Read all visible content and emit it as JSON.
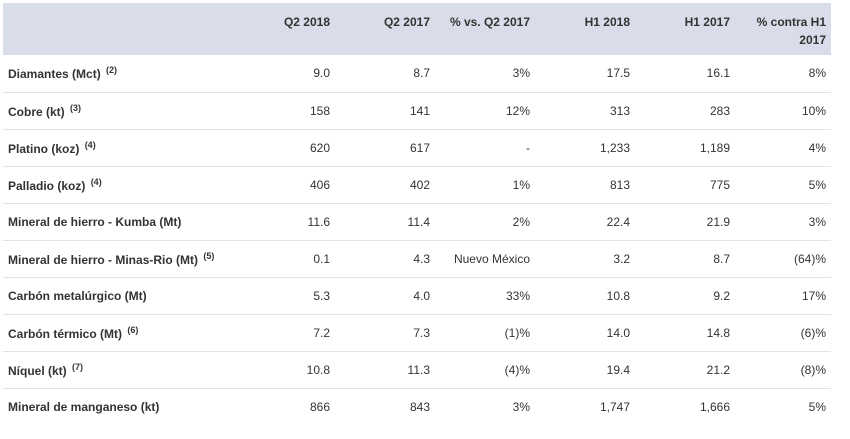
{
  "header": [
    "",
    "Q2 2018",
    "Q2 2017",
    "% vs. Q2 2017",
    "H1 2018",
    "H1 2017",
    "% contra H1 2017"
  ],
  "rows": [
    {
      "label": "Diamantes (Mct)",
      "note": "(2)",
      "values": [
        "9.0",
        "8.7",
        "3%",
        "17.5",
        "16.1",
        "8%"
      ]
    },
    {
      "label": "Cobre (kt)",
      "note": "(3)",
      "values": [
        "158",
        "141",
        "12%",
        "313",
        "283",
        "10%"
      ]
    },
    {
      "label": "Platino (koz)",
      "note": "(4)",
      "values": [
        "620",
        "617",
        "-",
        "1,233",
        "1,189",
        "4%"
      ]
    },
    {
      "label": "Palladio (koz)",
      "note": "(4)",
      "values": [
        "406",
        "402",
        "1%",
        "813",
        "775",
        "5%"
      ]
    },
    {
      "label": "Mineral de hierro - Kumba (Mt)",
      "note": "",
      "values": [
        "11.6",
        "11.4",
        "2%",
        "22.4",
        "21.9",
        "3%"
      ]
    },
    {
      "label": "Mineral de hierro - Minas-Rio (Mt)",
      "note": "(5)",
      "values": [
        "0.1",
        "4.3",
        "Nuevo México",
        "3.2",
        "8.7",
        "(64)%"
      ]
    },
    {
      "label": "Carbón metalúrgico (Mt)",
      "note": "",
      "values": [
        "5.3",
        "4.0",
        "33%",
        "10.8",
        "9.2",
        "17%"
      ]
    },
    {
      "label": "Carbón térmico (Mt)",
      "note": "(6)",
      "values": [
        "7.2",
        "7.3",
        "(1)%",
        "14.0",
        "14.8",
        "(6)%"
      ]
    },
    {
      "label": "Níquel (kt)",
      "note": "(7)",
      "values": [
        "10.8",
        "11.3",
        "(4)%",
        "19.4",
        "21.2",
        "(8)%"
      ]
    },
    {
      "label": "Mineral de manganeso (kt)",
      "note": "",
      "values": [
        "866",
        "843",
        "3%",
        "1,747",
        "1,666",
        "5%"
      ]
    }
  ]
}
